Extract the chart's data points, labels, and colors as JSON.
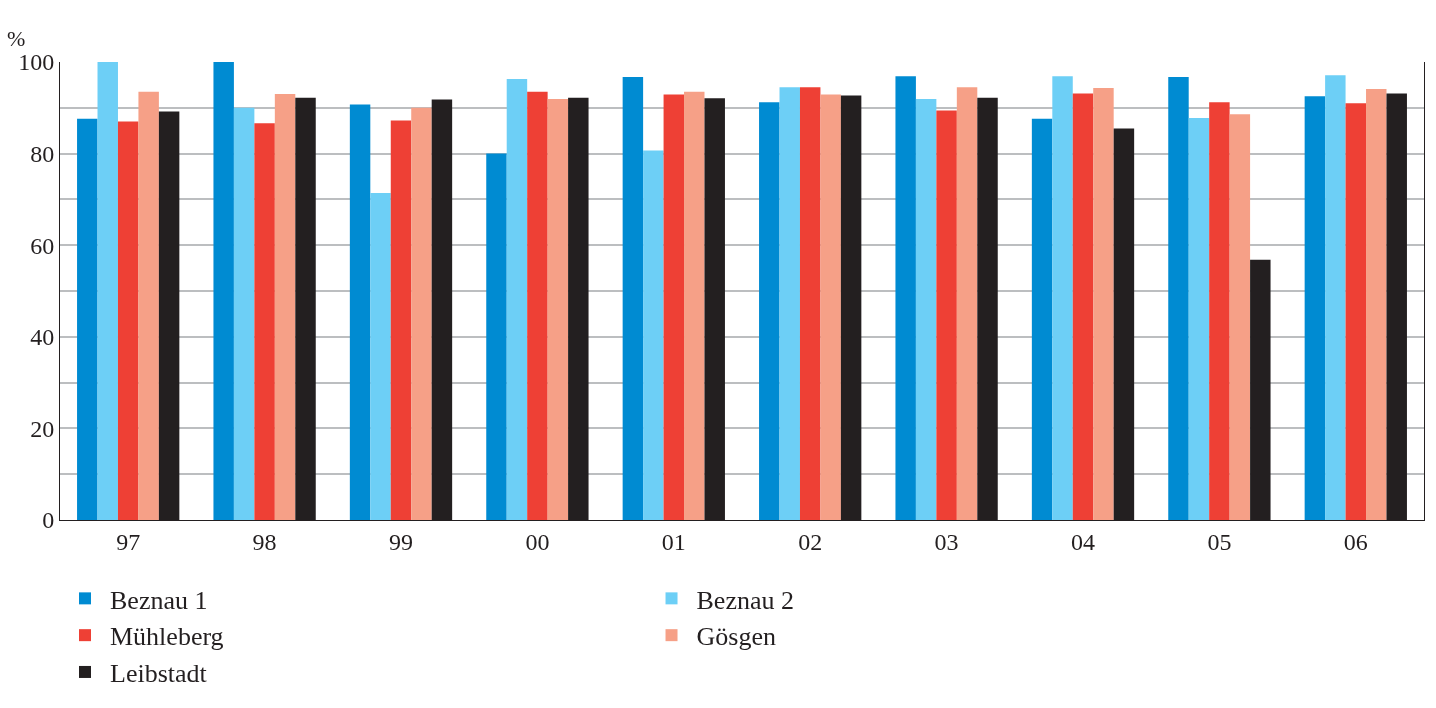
{
  "chart_data": {
    "type": "bar",
    "ylabel": "%",
    "categories": [
      "97",
      "98",
      "99",
      "00",
      "01",
      "02",
      "03",
      "04",
      "05",
      "06"
    ],
    "series": [
      {
        "name": "Beznau 1",
        "color": "#008bd2",
        "values": [
          87.6,
          100,
          90.7,
          80,
          96.7,
          91.2,
          96.9,
          87.6,
          96.7,
          92.5
        ]
      },
      {
        "name": "Beznau 2",
        "color": "#6dcff6",
        "values": [
          100,
          90,
          71.4,
          96.3,
          80.7,
          94.5,
          91.9,
          96.9,
          87.8,
          97.1
        ]
      },
      {
        "name": "Mühleberg",
        "color": "#ee4035",
        "values": [
          87,
          86.6,
          87.2,
          93.5,
          92.9,
          94.5,
          89.4,
          93.1,
          91.2,
          91
        ]
      },
      {
        "name": "Gösgen",
        "color": "#f6a087",
        "values": [
          93.5,
          93,
          90,
          91.9,
          93.5,
          92.9,
          94.5,
          94.3,
          88.6,
          94.1
        ]
      },
      {
        "name": "Leibstadt",
        "color": "#231f20",
        "values": [
          89.2,
          92.2,
          91.8,
          92.2,
          92.1,
          92.7,
          92.2,
          85.5,
          56.8,
          93.1
        ]
      }
    ],
    "ylim": [
      0,
      100
    ],
    "yticks": [
      0,
      {
        "value": 10,
        "label": null
      },
      20,
      {
        "value": 30,
        "label": null
      },
      40,
      {
        "value": 50,
        "label": null
      },
      60,
      {
        "value": 70,
        "label": null
      },
      80,
      {
        "value": 90,
        "label": null
      },
      100
    ],
    "grid": "y",
    "legend": "bottom"
  }
}
